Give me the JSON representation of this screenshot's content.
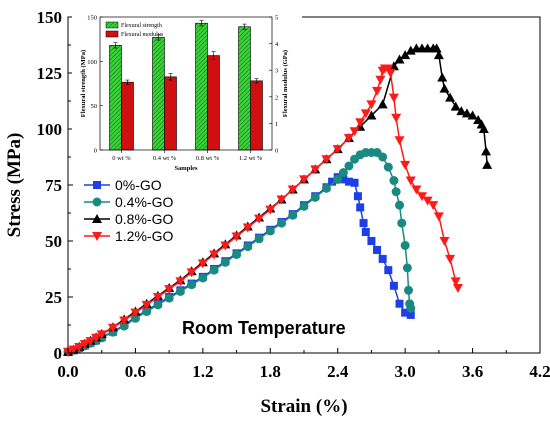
{
  "chart_data": [
    {
      "type": "line",
      "xlabel": "Strain (%)",
      "ylabel": "Stress (MPa)",
      "xlim": [
        0,
        4.2
      ],
      "ylim": [
        0,
        150
      ],
      "xticks": [
        "0.0",
        "0.6",
        "1.2",
        "1.8",
        "2.4",
        "3.0",
        "3.6",
        "4.2"
      ],
      "yticks": [
        "0",
        "25",
        "50",
        "75",
        "100",
        "125",
        "150"
      ],
      "annotation": "Room Temperature",
      "legend_position": "left",
      "series": [
        {
          "name": "0%-GO",
          "color": "#1f3fe6",
          "marker": "square",
          "points": [
            [
              0.0,
              0.5
            ],
            [
              0.05,
              1.2
            ],
            [
              0.1,
              2.3
            ],
            [
              0.15,
              3.3
            ],
            [
              0.2,
              4.5
            ],
            [
              0.25,
              5.6
            ],
            [
              0.3,
              7
            ],
            [
              0.4,
              9.5
            ],
            [
              0.5,
              12.5
            ],
            [
              0.6,
              16
            ],
            [
              0.7,
              19
            ],
            [
              0.8,
              22
            ],
            [
              0.9,
              25
            ],
            [
              1.0,
              28
            ],
            [
              1.1,
              31
            ],
            [
              1.2,
              34
            ],
            [
              1.3,
              37.5
            ],
            [
              1.4,
              41
            ],
            [
              1.5,
              44.5
            ],
            [
              1.6,
              48
            ],
            [
              1.7,
              51.5
            ],
            [
              1.8,
              55
            ],
            [
              1.9,
              58.5
            ],
            [
              2.0,
              62
            ],
            [
              2.1,
              66
            ],
            [
              2.2,
              70
            ],
            [
              2.3,
              74
            ],
            [
              2.35,
              76.5
            ],
            [
              2.4,
              78.5
            ],
            [
              2.45,
              77.5
            ],
            [
              2.5,
              76.5
            ],
            [
              2.55,
              76
            ],
            [
              2.58,
              70
            ],
            [
              2.6,
              65
            ],
            [
              2.63,
              58
            ],
            [
              2.65,
              54
            ],
            [
              2.7,
              50
            ],
            [
              2.75,
              46
            ],
            [
              2.8,
              42
            ],
            [
              2.85,
              37
            ],
            [
              2.9,
              30
            ],
            [
              2.95,
              22
            ],
            [
              3.0,
              18
            ],
            [
              3.05,
              17
            ]
          ]
        },
        {
          "name": "0.4%-GO",
          "color": "#1a8a80",
          "marker": "circle",
          "points": [
            [
              0.0,
              0.5
            ],
            [
              0.05,
              1.2
            ],
            [
              0.1,
              2.2
            ],
            [
              0.15,
              3.2
            ],
            [
              0.2,
              4.4
            ],
            [
              0.25,
              5.5
            ],
            [
              0.3,
              6.8
            ],
            [
              0.4,
              9.3
            ],
            [
              0.5,
              12
            ],
            [
              0.6,
              15.5
            ],
            [
              0.7,
              18.5
            ],
            [
              0.8,
              21.5
            ],
            [
              0.9,
              24.5
            ],
            [
              1.0,
              27.5
            ],
            [
              1.1,
              30.5
            ],
            [
              1.2,
              33.5
            ],
            [
              1.3,
              37
            ],
            [
              1.4,
              40.5
            ],
            [
              1.5,
              44
            ],
            [
              1.6,
              47.5
            ],
            [
              1.7,
              51
            ],
            [
              1.8,
              54.5
            ],
            [
              1.9,
              58
            ],
            [
              2.0,
              61.5
            ],
            [
              2.1,
              65.5
            ],
            [
              2.2,
              69.5
            ],
            [
              2.3,
              73.5
            ],
            [
              2.4,
              77.5
            ],
            [
              2.45,
              80.5
            ],
            [
              2.5,
              83.5
            ],
            [
              2.55,
              86.5
            ],
            [
              2.6,
              88.5
            ],
            [
              2.65,
              89.5
            ],
            [
              2.7,
              89.5
            ],
            [
              2.75,
              89.5
            ],
            [
              2.8,
              87.5
            ],
            [
              2.85,
              83
            ],
            [
              2.9,
              77
            ],
            [
              2.92,
              72
            ],
            [
              2.95,
              66
            ],
            [
              2.97,
              58
            ],
            [
              3.0,
              48
            ],
            [
              3.02,
              38
            ],
            [
              3.03,
              28
            ],
            [
              3.04,
              22
            ],
            [
              3.05,
              20
            ]
          ]
        },
        {
          "name": "0.8%-GO",
          "color": "#000000",
          "marker": "triangle-up",
          "points": [
            [
              0.0,
              0.5
            ],
            [
              0.05,
              1.5
            ],
            [
              0.1,
              2.8
            ],
            [
              0.15,
              4.2
            ],
            [
              0.2,
              5.5
            ],
            [
              0.25,
              7
            ],
            [
              0.3,
              8.5
            ],
            [
              0.4,
              11.5
            ],
            [
              0.5,
              15
            ],
            [
              0.6,
              18.5
            ],
            [
              0.7,
              22
            ],
            [
              0.8,
              25.5
            ],
            [
              0.9,
              29
            ],
            [
              1.0,
              32.5
            ],
            [
              1.1,
              36.5
            ],
            [
              1.2,
              40.5
            ],
            [
              1.3,
              44.5
            ],
            [
              1.4,
              48.5
            ],
            [
              1.5,
              52.5
            ],
            [
              1.6,
              56.5
            ],
            [
              1.7,
              60.5
            ],
            [
              1.8,
              64.5
            ],
            [
              1.9,
              68.5
            ],
            [
              2.0,
              73
            ],
            [
              2.1,
              77.5
            ],
            [
              2.2,
              82
            ],
            [
              2.3,
              86.5
            ],
            [
              2.4,
              91
            ],
            [
              2.5,
              96
            ],
            [
              2.6,
              101
            ],
            [
              2.7,
              106
            ],
            [
              2.8,
              111
            ],
            [
              2.9,
              128
            ],
            [
              2.95,
              131
            ],
            [
              3.0,
              133
            ],
            [
              3.05,
              135
            ],
            [
              3.1,
              136
            ],
            [
              3.15,
              136
            ],
            [
              3.2,
              136
            ],
            [
              3.25,
              136
            ],
            [
              3.28,
              136
            ],
            [
              3.3,
              133
            ],
            [
              3.33,
              123
            ],
            [
              3.35,
              118
            ],
            [
              3.4,
              114
            ],
            [
              3.45,
              110
            ],
            [
              3.5,
              108
            ],
            [
              3.55,
              107
            ],
            [
              3.6,
              106
            ],
            [
              3.65,
              104
            ],
            [
              3.68,
              102
            ],
            [
              3.7,
              100
            ],
            [
              3.72,
              90
            ],
            [
              3.73,
              84
            ]
          ]
        },
        {
          "name": "1.2%-GO",
          "color": "#ff1a1a",
          "marker": "triangle-down",
          "points": [
            [
              0.0,
              0.5
            ],
            [
              0.05,
              1.5
            ],
            [
              0.1,
              2.7
            ],
            [
              0.15,
              4
            ],
            [
              0.2,
              5.3
            ],
            [
              0.25,
              6.8
            ],
            [
              0.3,
              8.3
            ],
            [
              0.4,
              11.3
            ],
            [
              0.5,
              14.5
            ],
            [
              0.6,
              18
            ],
            [
              0.7,
              21.5
            ],
            [
              0.8,
              25
            ],
            [
              0.9,
              28.5
            ],
            [
              1.0,
              32
            ],
            [
              1.1,
              36
            ],
            [
              1.2,
              40
            ],
            [
              1.3,
              44
            ],
            [
              1.4,
              48
            ],
            [
              1.5,
              52
            ],
            [
              1.6,
              56
            ],
            [
              1.7,
              60
            ],
            [
              1.8,
              64
            ],
            [
              1.9,
              68.5
            ],
            [
              2.0,
              73
            ],
            [
              2.1,
              77.5
            ],
            [
              2.2,
              82
            ],
            [
              2.3,
              86.5
            ],
            [
              2.4,
              91
            ],
            [
              2.5,
              96
            ],
            [
              2.55,
              99
            ],
            [
              2.6,
              103
            ],
            [
              2.65,
              107
            ],
            [
              2.7,
              111
            ],
            [
              2.75,
              117
            ],
            [
              2.78,
              122
            ],
            [
              2.8,
              126
            ],
            [
              2.82,
              127
            ],
            [
              2.85,
              127
            ],
            [
              2.87,
              125
            ],
            [
              2.9,
              114
            ],
            [
              2.92,
              105
            ],
            [
              2.95,
              95
            ],
            [
              3.0,
              84
            ],
            [
              3.05,
              77
            ],
            [
              3.1,
              73
            ],
            [
              3.15,
              70
            ],
            [
              3.2,
              68
            ],
            [
              3.25,
              66
            ],
            [
              3.3,
              61
            ],
            [
              3.35,
              50
            ],
            [
              3.4,
              42
            ],
            [
              3.45,
              32
            ],
            [
              3.47,
              29
            ]
          ]
        }
      ]
    },
    {
      "type": "bar",
      "inset": true,
      "xlabel": "Samples",
      "ylabel_left": "Flexural strength (MPa)",
      "ylabel_right": "Flexural modulus (GPa)",
      "categories": [
        "0 wt %",
        "0.4 wt %",
        "0.8 wt %",
        "1.2 wt %"
      ],
      "ylim_left": [
        0,
        150
      ],
      "ylim_right": [
        0,
        5
      ],
      "yticks_left": [
        "0",
        "50",
        "100",
        "150"
      ],
      "yticks_right": [
        "0",
        "1",
        "2",
        "3",
        "4",
        "5"
      ],
      "legend_position": "top-left",
      "series": [
        {
          "name": "Flexural strength",
          "axis": "left",
          "color": "#2db52d",
          "values": [
            118,
            127,
            143,
            139
          ],
          "errors": [
            3,
            3,
            3,
            3
          ]
        },
        {
          "name": "Flexural modulus",
          "axis": "right",
          "color": "#d01010",
          "values": [
            2.55,
            2.75,
            3.55,
            2.6
          ],
          "errors": [
            0.08,
            0.12,
            0.15,
            0.08
          ]
        }
      ]
    }
  ]
}
